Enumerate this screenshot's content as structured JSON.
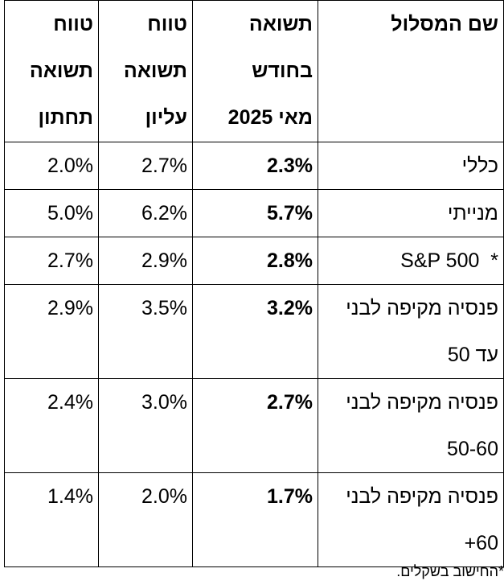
{
  "table": {
    "headers": {
      "track_name": [
        "שם המסלול"
      ],
      "may_return": [
        "תשואה",
        "בחודש",
        "מאי 2025"
      ],
      "upper_range": [
        "טווח",
        "תשואה",
        "עליון"
      ],
      "lower_range": [
        "טווח",
        "תשואה",
        "תחתון"
      ]
    },
    "rows": [
      {
        "name": [
          "כללי"
        ],
        "may": "2.3%",
        "upper": "2.7%",
        "lower": "2.0%"
      },
      {
        "name": [
          "מנייתי"
        ],
        "may": "5.7%",
        "upper": "6.2%",
        "lower": "5.0%"
      },
      {
        "name": [
          "S&P 500  *"
        ],
        "may": "2.8%",
        "upper": "2.9%",
        "lower": "2.7%"
      },
      {
        "name": [
          "פנסיה מקיפה לבני",
          "עד 50"
        ],
        "may": "3.2%",
        "upper": "3.5%",
        "lower": "2.9%"
      },
      {
        "name": [
          "פנסיה מקיפה לבני",
          "50-60"
        ],
        "may": "2.7%",
        "upper": "3.0%",
        "lower": "2.4%"
      },
      {
        "name": [
          "פנסיה מקיפה לבני",
          "+60"
        ],
        "may": "1.7%",
        "upper": "2.0%",
        "lower": "1.4%"
      }
    ]
  },
  "footnote": "*החישוב בשקלים."
}
